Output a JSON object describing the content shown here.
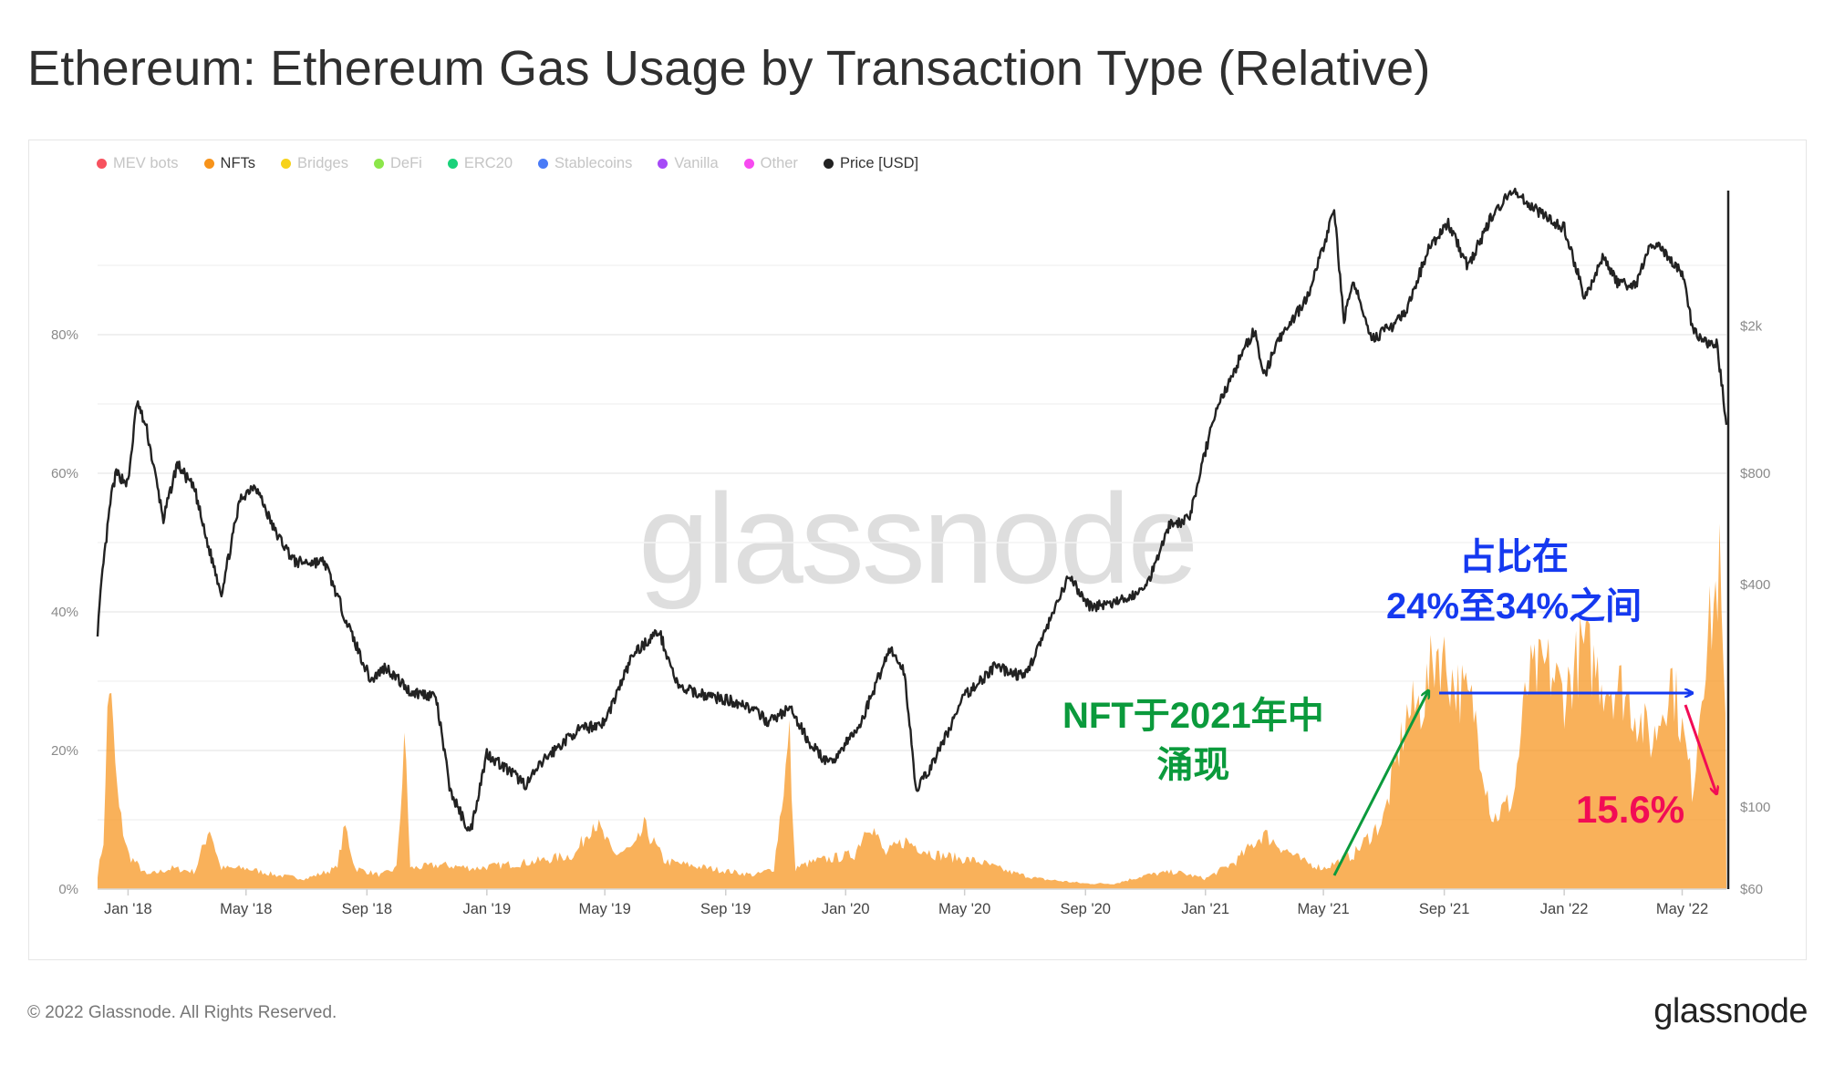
{
  "title": "Ethereum: Ethereum Gas Usage by Transaction Type (Relative)",
  "legend": [
    {
      "label": "MEV bots",
      "color": "#f7525f",
      "active": false
    },
    {
      "label": "NFTs",
      "color": "#f7931a",
      "active": true
    },
    {
      "label": "Bridges",
      "color": "#f7d21a",
      "active": false
    },
    {
      "label": "DeFi",
      "color": "#8ce64a",
      "active": false
    },
    {
      "label": "ERC20",
      "color": "#1ad27a",
      "active": false
    },
    {
      "label": "Stablecoins",
      "color": "#4a7bf7",
      "active": false
    },
    {
      "label": "Vanilla",
      "color": "#a64af7",
      "active": false
    },
    {
      "label": "Other",
      "color": "#f74af0",
      "active": false
    },
    {
      "label": "Price [USD]",
      "color": "#222222",
      "active": true
    }
  ],
  "watermark": "glassnode",
  "footer": "© 2022 Glassnode. All Rights Reserved.",
  "brand": "glassnode",
  "annotations": {
    "green": [
      "NFT于2021年中",
      "涌现"
    ],
    "blue": [
      "占比在",
      "24%至34%之间"
    ],
    "red": "15.6%"
  },
  "chart_data": {
    "type": "area",
    "title": "Ethereum: Ethereum Gas Usage by Transaction Type (Relative)",
    "x_ticks": [
      "Jan '18",
      "May '18",
      "Sep '18",
      "Jan '19",
      "May '19",
      "Sep '19",
      "Jan '20",
      "May '20",
      "Sep '20",
      "Jan '21",
      "May '21",
      "Sep '21",
      "Jan '22",
      "May '22"
    ],
    "x_range": [
      "2017-12-01",
      "2022-06-15"
    ],
    "y_left": {
      "ticks": [
        "0%",
        "20%",
        "40%",
        "60%",
        "80%"
      ],
      "range": [
        0,
        100
      ]
    },
    "y_right": {
      "scale": "log",
      "ticks": [
        "$60",
        "$100",
        "$400",
        "$800",
        "$2k"
      ],
      "tick_values": [
        60,
        100,
        400,
        800,
        2000
      ],
      "range": [
        60,
        4500
      ]
    },
    "series": [
      {
        "name": "NFTs",
        "axis": "left",
        "color": "#f7931a",
        "points": [
          [
            "2017-12-01",
            2
          ],
          [
            "2017-12-08",
            8
          ],
          [
            "2017-12-12",
            32
          ],
          [
            "2017-12-16",
            24
          ],
          [
            "2017-12-22",
            12
          ],
          [
            "2018-01-01",
            5
          ],
          [
            "2018-01-20",
            2
          ],
          [
            "2018-02-15",
            3
          ],
          [
            "2018-03-10",
            2.5
          ],
          [
            "2018-03-25",
            9
          ],
          [
            "2018-04-05",
            3
          ],
          [
            "2018-05-01",
            3
          ],
          [
            "2018-06-01",
            2
          ],
          [
            "2018-07-01",
            1.5
          ],
          [
            "2018-08-01",
            3
          ],
          [
            "2018-08-10",
            9
          ],
          [
            "2018-08-20",
            3
          ],
          [
            "2018-09-15",
            2
          ],
          [
            "2018-10-01",
            3
          ],
          [
            "2018-10-10",
            22
          ],
          [
            "2018-10-15",
            3
          ],
          [
            "2018-11-15",
            3.5
          ],
          [
            "2018-12-20",
            3
          ],
          [
            "2019-01-20",
            3.5
          ],
          [
            "2019-02-20",
            4
          ],
          [
            "2019-04-01",
            5
          ],
          [
            "2019-04-20",
            10
          ],
          [
            "2019-05-10",
            5
          ],
          [
            "2019-06-01",
            6
          ],
          [
            "2019-06-10",
            9
          ],
          [
            "2019-07-01",
            4
          ],
          [
            "2019-08-15",
            3
          ],
          [
            "2019-10-01",
            2
          ],
          [
            "2019-10-20",
            3
          ],
          [
            "2019-11-05",
            22
          ],
          [
            "2019-11-10",
            3
          ],
          [
            "2019-12-01",
            4
          ],
          [
            "2020-01-10",
            5
          ],
          [
            "2020-01-25",
            10
          ],
          [
            "2020-02-10",
            5
          ],
          [
            "2020-03-01",
            7
          ],
          [
            "2020-04-01",
            5
          ],
          [
            "2020-05-15",
            4
          ],
          [
            "2020-06-15",
            2.5
          ],
          [
            "2020-07-15",
            1.5
          ],
          [
            "2020-09-01",
            0.8
          ],
          [
            "2020-10-01",
            0.8
          ],
          [
            "2020-11-01",
            2
          ],
          [
            "2020-12-01",
            2.5
          ],
          [
            "2021-01-01",
            1.5
          ],
          [
            "2021-02-01",
            4
          ],
          [
            "2021-03-01",
            8
          ],
          [
            "2021-03-20",
            6
          ],
          [
            "2021-04-10",
            4
          ],
          [
            "2021-05-01",
            3
          ],
          [
            "2021-06-01",
            5
          ],
          [
            "2021-07-01",
            10
          ],
          [
            "2021-07-25",
            25
          ],
          [
            "2021-08-10",
            27
          ],
          [
            "2021-08-25",
            35
          ],
          [
            "2021-09-10",
            30
          ],
          [
            "2021-10-01",
            26
          ],
          [
            "2021-10-20",
            10
          ],
          [
            "2021-11-10",
            13
          ],
          [
            "2021-11-25",
            30
          ],
          [
            "2021-12-15",
            32
          ],
          [
            "2022-01-01",
            28
          ],
          [
            "2022-01-20",
            35
          ],
          [
            "2022-02-10",
            30
          ],
          [
            "2022-03-01",
            29
          ],
          [
            "2022-04-01",
            21
          ],
          [
            "2022-04-20",
            31
          ],
          [
            "2022-05-01",
            23
          ],
          [
            "2022-05-12",
            14
          ],
          [
            "2022-05-22",
            32
          ],
          [
            "2022-06-01",
            40
          ],
          [
            "2022-06-08",
            46
          ],
          [
            "2022-06-15",
            18
          ]
        ]
      },
      {
        "name": "Price [USD]",
        "axis": "right",
        "color": "#222222",
        "points": [
          [
            "2017-12-01",
            300
          ],
          [
            "2017-12-06",
            430
          ],
          [
            "2017-12-15",
            700
          ],
          [
            "2017-12-20",
            800
          ],
          [
            "2018-01-01",
            750
          ],
          [
            "2018-01-10",
            1250
          ],
          [
            "2018-01-20",
            1050
          ],
          [
            "2018-02-06",
            600
          ],
          [
            "2018-02-20",
            850
          ],
          [
            "2018-03-10",
            720
          ],
          [
            "2018-03-20",
            550
          ],
          [
            "2018-04-06",
            380
          ],
          [
            "2018-04-25",
            680
          ],
          [
            "2018-05-10",
            750
          ],
          [
            "2018-05-30",
            560
          ],
          [
            "2018-06-20",
            460
          ],
          [
            "2018-07-20",
            460
          ],
          [
            "2018-08-15",
            300
          ],
          [
            "2018-09-05",
            220
          ],
          [
            "2018-09-20",
            240
          ],
          [
            "2018-10-15",
            205
          ],
          [
            "2018-11-10",
            200
          ],
          [
            "2018-11-25",
            110
          ],
          [
            "2018-12-15",
            85
          ],
          [
            "2019-01-01",
            140
          ],
          [
            "2019-02-10",
            115
          ],
          [
            "2019-03-01",
            135
          ],
          [
            "2019-04-01",
            160
          ],
          [
            "2019-05-01",
            170
          ],
          [
            "2019-05-30",
            260
          ],
          [
            "2019-06-25",
            300
          ],
          [
            "2019-07-15",
            210
          ],
          [
            "2019-08-15",
            200
          ],
          [
            "2019-09-20",
            190
          ],
          [
            "2019-10-15",
            170
          ],
          [
            "2019-11-05",
            185
          ],
          [
            "2019-11-25",
            150
          ],
          [
            "2019-12-15",
            130
          ],
          [
            "2020-01-15",
            165
          ],
          [
            "2020-02-15",
            270
          ],
          [
            "2020-03-01",
            230
          ],
          [
            "2020-03-13",
            110
          ],
          [
            "2020-04-01",
            135
          ],
          [
            "2020-05-01",
            200
          ],
          [
            "2020-06-01",
            240
          ],
          [
            "2020-07-01",
            225
          ],
          [
            "2020-07-25",
            310
          ],
          [
            "2020-08-15",
            420
          ],
          [
            "2020-09-05",
            350
          ],
          [
            "2020-10-01",
            355
          ],
          [
            "2020-11-01",
            390
          ],
          [
            "2020-11-25",
            580
          ],
          [
            "2020-12-15",
            600
          ],
          [
            "2021-01-10",
            1150
          ],
          [
            "2021-02-10",
            1750
          ],
          [
            "2021-02-20",
            1950
          ],
          [
            "2021-03-01",
            1450
          ],
          [
            "2021-03-15",
            1800
          ],
          [
            "2021-04-15",
            2400
          ],
          [
            "2021-05-12",
            4100
          ],
          [
            "2021-05-22",
            2100
          ],
          [
            "2021-06-01",
            2600
          ],
          [
            "2021-06-20",
            1850
          ],
          [
            "2021-07-10",
            2000
          ],
          [
            "2021-07-25",
            2200
          ],
          [
            "2021-08-15",
            3200
          ],
          [
            "2021-09-05",
            3800
          ],
          [
            "2021-09-25",
            2900
          ],
          [
            "2021-10-20",
            4000
          ],
          [
            "2021-11-10",
            4700
          ],
          [
            "2021-11-25",
            4300
          ],
          [
            "2021-12-10",
            4000
          ],
          [
            "2022-01-01",
            3700
          ],
          [
            "2022-01-22",
            2400
          ],
          [
            "2022-02-10",
            3100
          ],
          [
            "2022-02-25",
            2600
          ],
          [
            "2022-03-15",
            2600
          ],
          [
            "2022-04-01",
            3400
          ],
          [
            "2022-04-20",
            3000
          ],
          [
            "2022-05-01",
            2800
          ],
          [
            "2022-05-12",
            1950
          ],
          [
            "2022-05-25",
            1800
          ],
          [
            "2022-06-05",
            1800
          ],
          [
            "2022-06-15",
            1100
          ]
        ]
      }
    ],
    "grid": true,
    "legend_position": "top-left"
  }
}
